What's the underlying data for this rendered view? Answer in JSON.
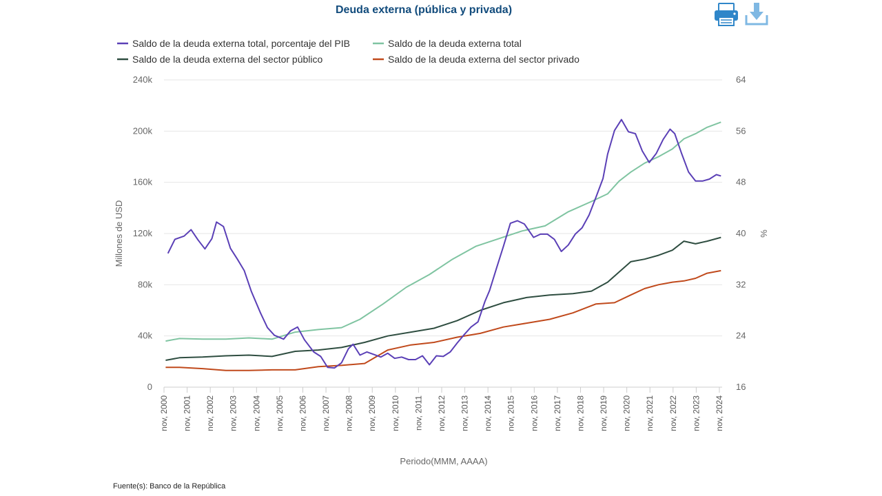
{
  "title": "Deuda externa (pública y privada)",
  "source": "Fuente(s): Banco de la República",
  "toolbar": {
    "print_icon": "printer-icon",
    "download_icon": "download-icon"
  },
  "chart_data": {
    "type": "line",
    "title": "Deuda externa (pública y privada)",
    "xlabel": "Periodo(MMM, AAAA)",
    "ylabel_left": "Millones de USD",
    "ylabel_right": "%",
    "xlim": [
      2000.83,
      2024.95
    ],
    "ylim_left": [
      0,
      240000
    ],
    "ylim_right": [
      16,
      64
    ],
    "yticks_left": [
      "0",
      "40k",
      "80k",
      "120k",
      "160k",
      "200k",
      "240k"
    ],
    "yticks_right": [
      "16",
      "24",
      "32",
      "40",
      "48",
      "56",
      "64"
    ],
    "xticks": [
      "nov, 2000",
      "nov, 2001",
      "nov, 2002",
      "nov, 2003",
      "nov, 2004",
      "nov, 2005",
      "nov, 2006",
      "nov, 2007",
      "nov, 2008",
      "nov, 2009",
      "nov, 2010",
      "nov, 2011",
      "nov, 2012",
      "nov, 2013",
      "nov, 2014",
      "nov, 2015",
      "nov, 2016",
      "nov, 2017",
      "nov, 2018",
      "nov, 2019",
      "nov, 2020",
      "nov, 2021",
      "nov, 2022",
      "nov, 2023",
      "nov, 2024"
    ],
    "grid": true,
    "legend_position": "top",
    "series": [
      {
        "name": "Saldo de la deuda externa total, porcentaje del PIB",
        "axis": "right",
        "color": "#5a3fb6",
        "x": [
          2001.0,
          2001.3,
          2001.7,
          2002.0,
          2002.3,
          2002.6,
          2002.9,
          2003.1,
          2003.4,
          2003.7,
          2004.0,
          2004.3,
          2004.6,
          2005.0,
          2005.3,
          2005.6,
          2006.0,
          2006.3,
          2006.6,
          2006.9,
          2007.3,
          2007.6,
          2007.9,
          2008.2,
          2008.5,
          2008.8,
          2009.0,
          2009.3,
          2009.6,
          2009.9,
          2010.2,
          2010.5,
          2010.8,
          2011.1,
          2011.4,
          2011.7,
          2012.0,
          2012.3,
          2012.6,
          2012.9,
          2013.2,
          2013.5,
          2013.8,
          2014.1,
          2014.4,
          2014.7,
          2014.9,
          2015.2,
          2015.5,
          2015.8,
          2016.1,
          2016.4,
          2016.8,
          2017.1,
          2017.4,
          2017.7,
          2018.0,
          2018.3,
          2018.6,
          2018.9,
          2019.2,
          2019.5,
          2019.8,
          2020.0,
          2020.3,
          2020.6,
          2020.9,
          2021.2,
          2021.5,
          2021.8,
          2022.1,
          2022.4,
          2022.7,
          2022.9,
          2023.2,
          2023.5,
          2023.8,
          2024.1,
          2024.4,
          2024.7,
          2024.9
        ],
        "y": [
          36.9,
          39.1,
          39.6,
          40.6,
          39.0,
          37.6,
          39.2,
          41.8,
          41.1,
          37.7,
          36.0,
          34.2,
          31.0,
          27.6,
          25.3,
          24.1,
          23.5,
          24.8,
          25.4,
          23.4,
          21.5,
          20.8,
          19.1,
          19.0,
          19.8,
          22.0,
          22.7,
          21.0,
          21.5,
          21.1,
          20.7,
          21.3,
          20.5,
          20.7,
          20.3,
          20.3,
          20.9,
          19.5,
          20.9,
          20.8,
          21.5,
          22.9,
          24.2,
          25.4,
          26.2,
          29.4,
          31.1,
          34.6,
          38.0,
          41.6,
          42.0,
          41.5,
          39.4,
          39.9,
          39.9,
          39.1,
          37.2,
          38.2,
          39.9,
          40.9,
          42.9,
          45.7,
          48.6,
          52.4,
          56.1,
          57.8,
          55.9,
          55.6,
          52.9,
          51.1,
          52.5,
          54.7,
          56.3,
          55.6,
          52.5,
          49.6,
          48.2,
          48.2,
          48.5,
          49.2,
          49.0
        ]
      },
      {
        "name": "Saldo de la deuda externa total",
        "axis": "left",
        "color": "#7fc4a1",
        "x": [
          2000.9,
          2001.5,
          2002.5,
          2003.5,
          2004.5,
          2005.5,
          2006.5,
          2007.5,
          2008.5,
          2009.3,
          2010.3,
          2011.3,
          2012.3,
          2013.3,
          2014.3,
          2015.3,
          2016.3,
          2017.3,
          2018.3,
          2019.3,
          2020.0,
          2020.5,
          2021.0,
          2021.6,
          2022.2,
          2022.8,
          2023.3,
          2023.8,
          2024.3,
          2024.9
        ],
        "y": [
          36000,
          38000,
          37500,
          37500,
          38500,
          37500,
          43000,
          45000,
          46500,
          53000,
          65000,
          78000,
          88000,
          100000,
          110000,
          116000,
          122000,
          126000,
          137000,
          145000,
          151000,
          161000,
          168000,
          175000,
          180000,
          186000,
          194000,
          198000,
          203000,
          207000
        ]
      },
      {
        "name": "Saldo de la deuda externa del sector público",
        "axis": "left",
        "color": "#2e4d40",
        "x": [
          2000.9,
          2001.5,
          2002.5,
          2003.5,
          2004.5,
          2005.5,
          2006.5,
          2007.5,
          2008.5,
          2009.5,
          2010.5,
          2011.5,
          2012.5,
          2013.5,
          2014.5,
          2015.5,
          2016.5,
          2017.5,
          2018.5,
          2019.3,
          2020.0,
          2020.5,
          2021.0,
          2021.6,
          2022.2,
          2022.8,
          2023.3,
          2023.8,
          2024.3,
          2024.9
        ],
        "y": [
          21000,
          23000,
          23500,
          24500,
          25000,
          24000,
          28000,
          29000,
          31000,
          35000,
          40000,
          43000,
          46000,
          52000,
          60000,
          66000,
          70000,
          72000,
          73000,
          75000,
          82000,
          90000,
          98000,
          100000,
          103000,
          107000,
          114000,
          112000,
          114000,
          117000
        ]
      },
      {
        "name": "Saldo de la deuda externa del sector privado",
        "axis": "left",
        "color": "#c0491b",
        "x": [
          2000.9,
          2001.5,
          2002.5,
          2003.5,
          2004.5,
          2005.5,
          2006.5,
          2007.5,
          2008.5,
          2009.5,
          2010.5,
          2011.5,
          2012.5,
          2013.5,
          2014.5,
          2015.5,
          2016.5,
          2017.5,
          2018.5,
          2019.5,
          2020.3,
          2021.0,
          2021.6,
          2022.2,
          2022.8,
          2023.3,
          2023.8,
          2024.3,
          2024.9
        ],
        "y": [
          15500,
          15500,
          14500,
          13000,
          13000,
          13500,
          13500,
          16000,
          17000,
          18500,
          29000,
          33000,
          35000,
          39000,
          42000,
          47000,
          50000,
          53000,
          58000,
          65000,
          66000,
          72000,
          77000,
          80000,
          82000,
          83000,
          85000,
          89000,
          91000
        ]
      }
    ]
  }
}
